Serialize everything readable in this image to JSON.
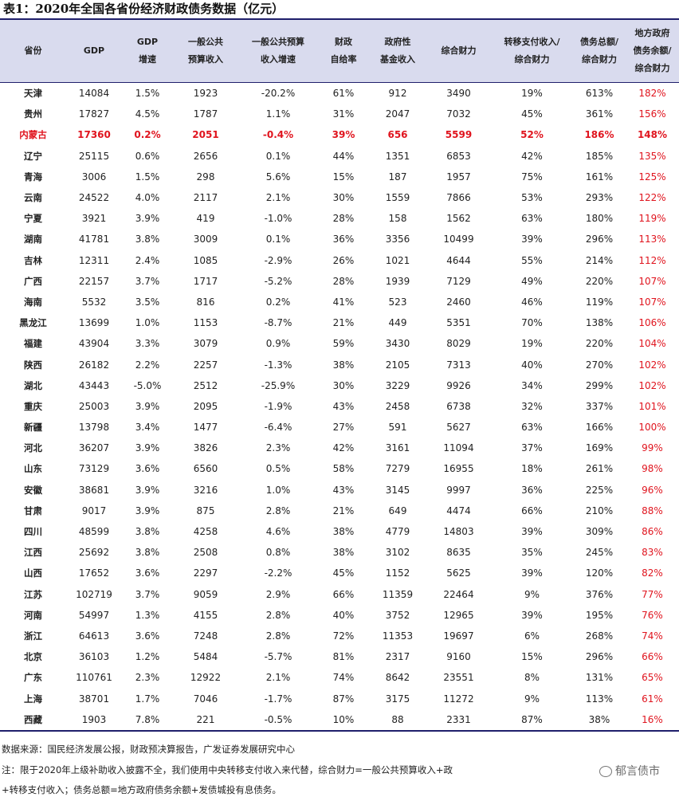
{
  "title": "表1：2020年全国各省份经济财政债务数据（亿元）",
  "columns": [
    [
      "省份"
    ],
    [
      "GDP"
    ],
    [
      "GDP",
      "增速"
    ],
    [
      "一般公共",
      "预算收入"
    ],
    [
      "一般公共预算",
      "收入增速"
    ],
    [
      "财政",
      "自给率"
    ],
    [
      "政府性",
      "基金收入"
    ],
    [
      "综合财力"
    ],
    [
      "转移支付收入/",
      "综合财力"
    ],
    [
      "债务总额/",
      "综合财力"
    ],
    [
      "地方政府",
      "债务余额/",
      "综合财力"
    ]
  ],
  "rows": [
    [
      "天津",
      "14084",
      "1.5%",
      "1923",
      "-20.2%",
      "61%",
      "912",
      "3490",
      "19%",
      "613%",
      "182%"
    ],
    [
      "贵州",
      "17827",
      "4.5%",
      "1787",
      "1.1%",
      "31%",
      "2047",
      "7032",
      "45%",
      "361%",
      "156%"
    ],
    [
      "内蒙古",
      "17360",
      "0.2%",
      "2051",
      "-0.4%",
      "39%",
      "656",
      "5599",
      "52%",
      "186%",
      "148%"
    ],
    [
      "辽宁",
      "25115",
      "0.6%",
      "2656",
      "0.1%",
      "44%",
      "1351",
      "6853",
      "42%",
      "185%",
      "135%"
    ],
    [
      "青海",
      "3006",
      "1.5%",
      "298",
      "5.6%",
      "15%",
      "187",
      "1957",
      "75%",
      "161%",
      "125%"
    ],
    [
      "云南",
      "24522",
      "4.0%",
      "2117",
      "2.1%",
      "30%",
      "1559",
      "7866",
      "53%",
      "293%",
      "122%"
    ],
    [
      "宁夏",
      "3921",
      "3.9%",
      "419",
      "-1.0%",
      "28%",
      "158",
      "1562",
      "63%",
      "180%",
      "119%"
    ],
    [
      "湖南",
      "41781",
      "3.8%",
      "3009",
      "0.1%",
      "36%",
      "3356",
      "10499",
      "39%",
      "296%",
      "113%"
    ],
    [
      "吉林",
      "12311",
      "2.4%",
      "1085",
      "-2.9%",
      "26%",
      "1021",
      "4644",
      "55%",
      "214%",
      "112%"
    ],
    [
      "广西",
      "22157",
      "3.7%",
      "1717",
      "-5.2%",
      "28%",
      "1939",
      "7129",
      "49%",
      "220%",
      "107%"
    ],
    [
      "海南",
      "5532",
      "3.5%",
      "816",
      "0.2%",
      "41%",
      "523",
      "2460",
      "46%",
      "119%",
      "107%"
    ],
    [
      "黑龙江",
      "13699",
      "1.0%",
      "1153",
      "-8.7%",
      "21%",
      "449",
      "5351",
      "70%",
      "138%",
      "106%"
    ],
    [
      "福建",
      "43904",
      "3.3%",
      "3079",
      "0.9%",
      "59%",
      "3430",
      "8029",
      "19%",
      "220%",
      "104%"
    ],
    [
      "陕西",
      "26182",
      "2.2%",
      "2257",
      "-1.3%",
      "38%",
      "2105",
      "7313",
      "40%",
      "270%",
      "102%"
    ],
    [
      "湖北",
      "43443",
      "-5.0%",
      "2512",
      "-25.9%",
      "30%",
      "3229",
      "9926",
      "34%",
      "299%",
      "102%"
    ],
    [
      "重庆",
      "25003",
      "3.9%",
      "2095",
      "-1.9%",
      "43%",
      "2458",
      "6738",
      "32%",
      "337%",
      "101%"
    ],
    [
      "新疆",
      "13798",
      "3.4%",
      "1477",
      "-6.4%",
      "27%",
      "591",
      "5627",
      "63%",
      "166%",
      "100%"
    ],
    [
      "河北",
      "36207",
      "3.9%",
      "3826",
      "2.3%",
      "42%",
      "3161",
      "11094",
      "37%",
      "169%",
      "99%"
    ],
    [
      "山东",
      "73129",
      "3.6%",
      "6560",
      "0.5%",
      "58%",
      "7279",
      "16955",
      "18%",
      "261%",
      "98%"
    ],
    [
      "安徽",
      "38681",
      "3.9%",
      "3216",
      "1.0%",
      "43%",
      "3145",
      "9997",
      "36%",
      "225%",
      "96%"
    ],
    [
      "甘肃",
      "9017",
      "3.9%",
      "875",
      "2.8%",
      "21%",
      "649",
      "4474",
      "66%",
      "210%",
      "88%"
    ],
    [
      "四川",
      "48599",
      "3.8%",
      "4258",
      "4.6%",
      "38%",
      "4779",
      "14803",
      "39%",
      "309%",
      "86%"
    ],
    [
      "江西",
      "25692",
      "3.8%",
      "2508",
      "0.8%",
      "38%",
      "3102",
      "8635",
      "35%",
      "245%",
      "83%"
    ],
    [
      "山西",
      "17652",
      "3.6%",
      "2297",
      "-2.2%",
      "45%",
      "1152",
      "5625",
      "39%",
      "120%",
      "82%"
    ],
    [
      "江苏",
      "102719",
      "3.7%",
      "9059",
      "2.9%",
      "66%",
      "11359",
      "22464",
      "9%",
      "376%",
      "77%"
    ],
    [
      "河南",
      "54997",
      "1.3%",
      "4155",
      "2.8%",
      "40%",
      "3752",
      "12965",
      "39%",
      "195%",
      "76%"
    ],
    [
      "浙江",
      "64613",
      "3.6%",
      "7248",
      "2.8%",
      "72%",
      "11353",
      "19697",
      "6%",
      "268%",
      "74%"
    ],
    [
      "北京",
      "36103",
      "1.2%",
      "5484",
      "-5.7%",
      "81%",
      "2317",
      "9160",
      "15%",
      "296%",
      "66%"
    ],
    [
      "广东",
      "110761",
      "2.3%",
      "12922",
      "2.1%",
      "74%",
      "8642",
      "23551",
      "8%",
      "131%",
      "65%"
    ],
    [
      "上海",
      "38701",
      "1.7%",
      "7046",
      "-1.7%",
      "87%",
      "3175",
      "11272",
      "9%",
      "113%",
      "61%"
    ],
    [
      "西藏",
      "1903",
      "7.8%",
      "221",
      "-0.5%",
      "10%",
      "88",
      "2331",
      "87%",
      "38%",
      "16%"
    ]
  ],
  "highlight_row": "内蒙古",
  "colors": {
    "accent_red": "#e0141e",
    "header_bg": "#d9dbee",
    "rule": "#1f1f6b"
  },
  "source": "数据来源：国民经济发展公报，财政预决算报告，广发证券发展研究中心",
  "note_line1": "注：限于2020年上级补助收入披露不全，我们使用中央转移支付收入来代替，综合财力=一般公共预算收入+政",
  "note_line2": "+转移支付收入；债务总额=地方政府债务余额+发债城投有息债务。",
  "watermark": "郁言债市"
}
